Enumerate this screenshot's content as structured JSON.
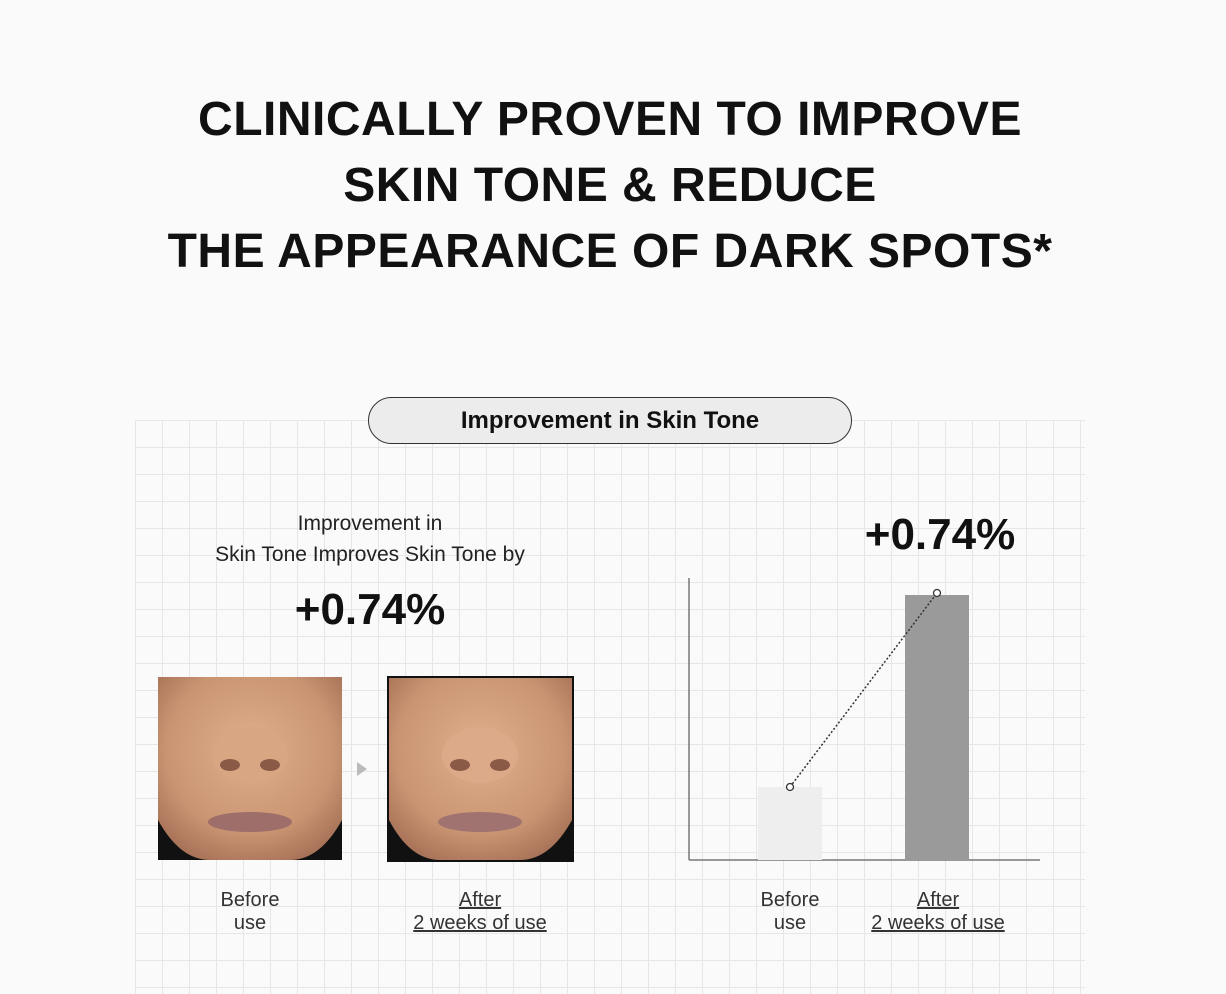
{
  "header": {
    "title": [
      "CLINICALLY PROVEN TO IMPROVE",
      "SKIN TONE & REDUCE",
      "THE APPEARANCE OF DARK SPOTS*"
    ]
  },
  "badge": "Improvement in Skin Tone",
  "left": {
    "caption": [
      "Improvement in",
      "Skin Tone Improves Skin Tone by"
    ],
    "result": "+0.74%",
    "before": [
      "Before",
      "use"
    ],
    "after": [
      "After",
      "2 weeks of use"
    ]
  },
  "right": {
    "result": "+0.74%",
    "before": [
      "Before",
      "use"
    ],
    "after": [
      "After",
      "2 weeks of use"
    ]
  }
}
